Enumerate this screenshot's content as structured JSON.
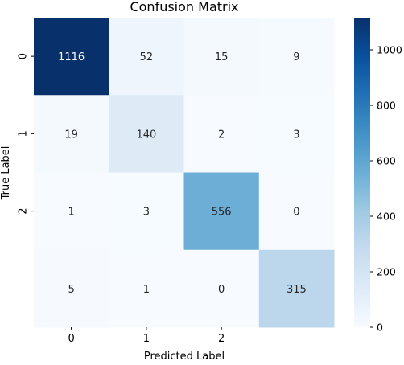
{
  "chart_data": {
    "type": "heatmap",
    "title": "Confusion Matrix",
    "xlabel": "Predicted Label",
    "ylabel": "True Label",
    "x_tick_labels": [
      "0",
      "1",
      "2",
      ""
    ],
    "y_tick_labels": [
      "0",
      "1",
      "2",
      ""
    ],
    "matrix": [
      [
        1116,
        52,
        15,
        9
      ],
      [
        19,
        140,
        2,
        3
      ],
      [
        1,
        3,
        556,
        0
      ],
      [
        5,
        1,
        0,
        315
      ]
    ],
    "colormap": "Blues",
    "color_range": [
      0,
      1116
    ],
    "colorbar_ticks": [
      0,
      200,
      400,
      600,
      800,
      1000
    ],
    "colors": {
      "low": "#f7fbff",
      "high": "#08306b"
    }
  }
}
